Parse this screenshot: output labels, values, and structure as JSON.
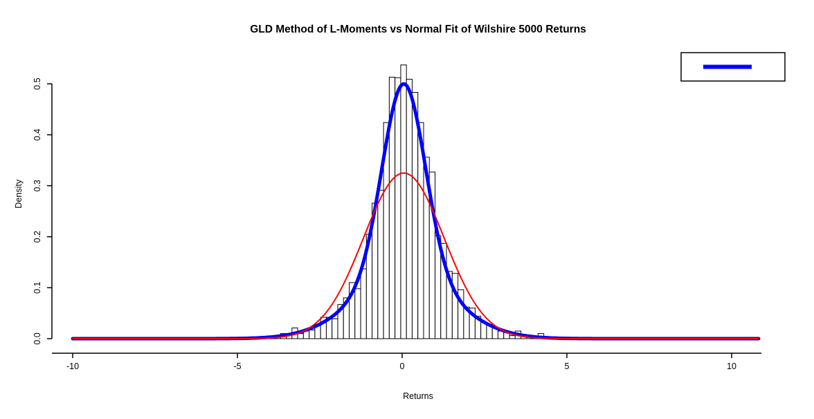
{
  "title": "GLD Method of L-Moments vs Normal Fit of Wilshire 5000 Returns",
  "chart_data": {
    "type": "histogram",
    "title": "GLD Method of L-Moments vs Normal Fit of Wilshire 5000 Returns",
    "xlabel": "Returns",
    "ylabel": "Density",
    "xlim": [
      -11,
      11.7
    ],
    "ylim": [
      0,
      0.54
    ],
    "grid": false,
    "x_ticks": [
      -10,
      -5,
      0,
      5,
      10
    ],
    "x_tick_labels": [
      "-10",
      "-5",
      "0",
      "5",
      "10"
    ],
    "y_ticks": [
      0.0,
      0.1,
      0.2,
      0.3,
      0.4,
      0.5
    ],
    "y_tick_labels": [
      "0.0",
      "0.1",
      "0.2",
      "0.3",
      "0.4",
      "0.5"
    ],
    "histogram": {
      "bin_start": -4.56,
      "bin_width": 0.1737,
      "bar_fill": "#FFFFFF",
      "bar_stroke": "#000000",
      "densities": [
        0.002,
        0.002,
        0.003,
        0.004,
        0.006,
        0.01,
        0.01,
        0.021,
        0.01,
        0.015,
        0.017,
        0.028,
        0.042,
        0.042,
        0.039,
        0.067,
        0.08,
        0.11,
        0.098,
        0.137,
        0.205,
        0.266,
        0.291,
        0.424,
        0.513,
        0.512,
        0.537,
        0.509,
        0.483,
        0.424,
        0.356,
        0.327,
        0.202,
        0.187,
        0.132,
        0.128,
        0.096,
        0.062,
        0.06,
        0.044,
        0.033,
        0.026,
        0.022,
        0.015,
        0.012,
        0.006,
        0.015,
        0.008,
        0.005,
        0.004,
        0.01,
        0.003
      ]
    },
    "curves": [
      {
        "name": "gld-l-moments-fit",
        "color": "#0000FF",
        "stroke_width": 5,
        "model": "gauss_mixture",
        "mu": 0.05,
        "components": [
          {
            "amplitude": 0.38,
            "variance2": 0.845
          },
          {
            "amplitude": 0.12,
            "variance2": 4.5
          }
        ],
        "peak_density": 0.5,
        "x_range": [
          -10.0,
          10.86
        ]
      },
      {
        "name": "normal-fit",
        "color": "#FF0000",
        "stroke_width": 2,
        "model": "normal",
        "mu": 0.05,
        "sigma": 1.227,
        "peak_density": 0.325,
        "x_range": [
          -10.0,
          10.86
        ]
      }
    ],
    "legend": {
      "position": "topright",
      "border_color": "#000000",
      "fill": "#FFFFFF",
      "entries": [
        {
          "name": "gld-fit-line",
          "label": "",
          "color": "#0000FF"
        }
      ]
    }
  },
  "colors": {
    "background": "#FFFFFF",
    "axis": "#000000",
    "gld_curve": "#0000FF",
    "normal_curve": "#FF0000"
  }
}
